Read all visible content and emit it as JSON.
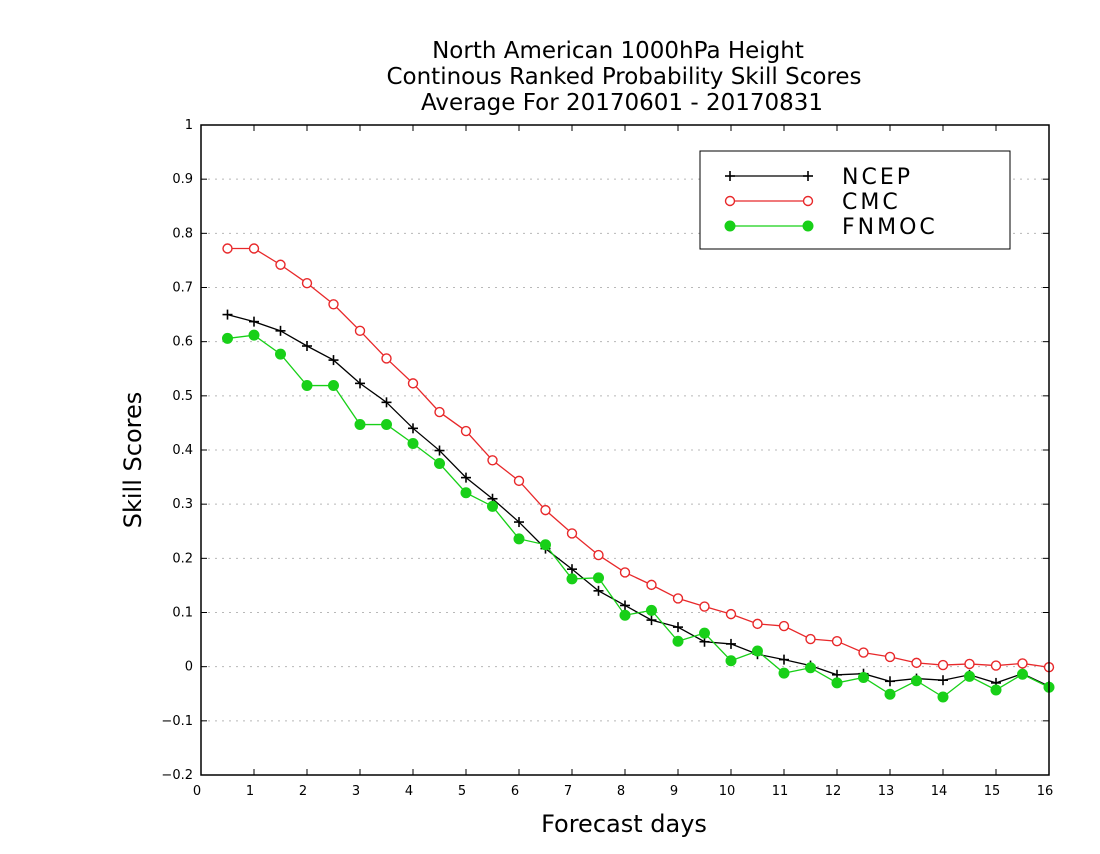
{
  "chart_data": {
    "type": "line",
    "title": [
      "North American 1000hPa Height",
      "Continous Ranked Probability Skill Scores",
      "Average For 20170601 - 20170831"
    ],
    "xlabel": "Forecast days",
    "ylabel": "Skill Scores",
    "xlim": [
      0,
      16
    ],
    "ylim": [
      -0.2,
      1
    ],
    "xticks": [
      "0",
      "1",
      "2",
      "3",
      "4",
      "5",
      "6",
      "7",
      "8",
      "9",
      "10",
      "11",
      "12",
      "13",
      "14",
      "15",
      "16"
    ],
    "yticks": [
      "−0.2",
      "−0.1",
      "0",
      "0.1",
      "0.2",
      "0.3",
      "0.4",
      "0.5",
      "0.6",
      "0.7",
      "0.8",
      "0.9",
      "1"
    ],
    "grid": "horizontal-dotted",
    "legend_position": "top-right",
    "x": [
      0.5,
      1,
      1.5,
      2,
      2.5,
      3,
      3.5,
      4,
      4.5,
      5,
      5.5,
      6,
      6.5,
      7,
      7.5,
      8,
      8.5,
      9,
      9.5,
      10,
      10.5,
      11,
      11.5,
      12,
      12.5,
      13,
      13.5,
      14,
      14.5,
      15,
      15.5,
      16
    ],
    "series": [
      {
        "name": "NCEP",
        "color": "#000000",
        "marker": "plus",
        "values": [
          0.65,
          0.637,
          0.62,
          0.592,
          0.566,
          0.523,
          0.488,
          0.44,
          0.399,
          0.349,
          0.31,
          0.267,
          0.218,
          0.18,
          0.14,
          0.113,
          0.086,
          0.073,
          0.046,
          0.042,
          0.023,
          0.013,
          0.002,
          -0.015,
          -0.013,
          -0.027,
          -0.022,
          -0.025,
          -0.015,
          -0.03,
          -0.013,
          -0.036
        ]
      },
      {
        "name": "CMC",
        "color": "#e8282a",
        "marker": "open-circle",
        "values": [
          0.772,
          0.772,
          0.742,
          0.708,
          0.669,
          0.62,
          0.569,
          0.523,
          0.47,
          0.435,
          0.381,
          0.343,
          0.289,
          0.246,
          0.206,
          0.174,
          0.151,
          0.126,
          0.111,
          0.097,
          0.079,
          0.075,
          0.051,
          0.047,
          0.026,
          0.018,
          0.007,
          0.003,
          0.005,
          0.002,
          0.006,
          -0.001
        ]
      },
      {
        "name": "FNMOC",
        "color": "#18d018",
        "marker": "filled-circle",
        "values": [
          0.606,
          0.612,
          0.577,
          0.519,
          0.519,
          0.447,
          0.447,
          0.412,
          0.375,
          0.321,
          0.296,
          0.236,
          0.225,
          0.162,
          0.164,
          0.095,
          0.104,
          0.047,
          0.062,
          0.011,
          0.029,
          -0.012,
          -0.002,
          -0.03,
          -0.02,
          -0.051,
          -0.026,
          -0.056,
          -0.018,
          -0.043,
          -0.014,
          -0.038
        ]
      }
    ]
  }
}
